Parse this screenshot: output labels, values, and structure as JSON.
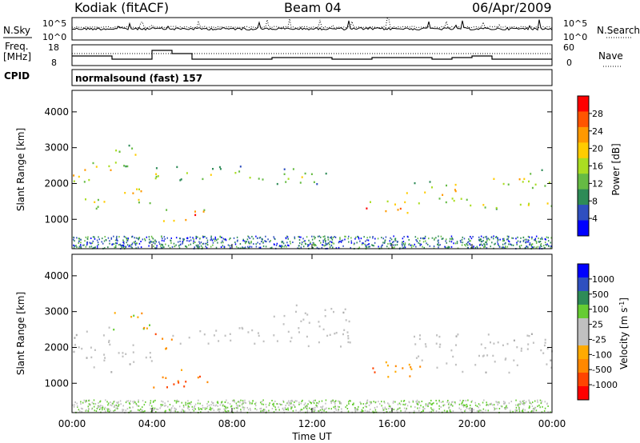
{
  "header": {
    "station": "Kodiak (fitACF)",
    "beam": "Beam 04",
    "date": "06/Apr/2009"
  },
  "noise_panel": {
    "left_label": "N.Sky",
    "right_label": "N.Search",
    "yticks": [
      "10^5",
      "10^0"
    ],
    "yticks_right": [
      "10^5",
      "10^0"
    ]
  },
  "freq_panel": {
    "left_label_line1": "Freq.",
    "left_label_line2": "[MHz]",
    "right_label": "Nave",
    "yticks": [
      "18",
      "8"
    ],
    "yticks_right": [
      "60",
      "0"
    ]
  },
  "cpid": {
    "label": "CPID",
    "value": "normalsound (fast) 157"
  },
  "axes": {
    "xlabel": "Time UT",
    "xticks": [
      "00:00",
      "04:00",
      "08:00",
      "12:00",
      "16:00",
      "20:00",
      "00:00"
    ],
    "ylabel": "Slant Range [km]",
    "yticks": [
      "4000",
      "3000",
      "2000",
      "1000"
    ]
  },
  "chart_data": [
    {
      "type": "heatmap",
      "name": "Power",
      "colorbar_label": "Power [dB]",
      "colorbar_ticks": [
        "28",
        "24",
        "20",
        "16",
        "12",
        "8",
        "4"
      ],
      "colorbar_colors": [
        "#0000ff",
        "#2f4fbf",
        "#2e8b57",
        "#66bb44",
        "#aadd22",
        "#ffcc00",
        "#ff9900",
        "#ff5500",
        "#ff0000"
      ],
      "xlim_hours": [
        0,
        24
      ],
      "ylim_km": [
        180,
        4600
      ],
      "features": [
        {
          "t0": 0.0,
          "t1": 2.0,
          "r0": 2000,
          "r1": 2600,
          "level": 0.75
        },
        {
          "t0": 0.0,
          "t1": 2.0,
          "r0": 1300,
          "r1": 1650,
          "level": 0.6
        },
        {
          "t0": 2.0,
          "t1": 4.0,
          "r0": 1450,
          "r1": 1900,
          "level": 0.85
        },
        {
          "t0": 2.0,
          "t1": 4.0,
          "r0": 2500,
          "r1": 3100,
          "level": 0.6
        },
        {
          "t0": 4.5,
          "t1": 7.0,
          "r0": 900,
          "r1": 1300,
          "level": 0.95
        },
        {
          "t0": 4.0,
          "t1": 10.0,
          "r0": 2100,
          "r1": 2500,
          "level": 0.5
        },
        {
          "t0": 10.0,
          "t1": 13.0,
          "r0": 1950,
          "r1": 2450,
          "level": 0.45
        },
        {
          "t0": 14.5,
          "t1": 17.5,
          "r0": 1150,
          "r1": 1550,
          "level": 0.9
        },
        {
          "t0": 16.5,
          "t1": 19.5,
          "r0": 1500,
          "r1": 2100,
          "level": 0.7
        },
        {
          "t0": 19.5,
          "t1": 24.0,
          "r0": 1300,
          "r1": 1600,
          "level": 0.55
        },
        {
          "t0": 21.0,
          "t1": 24.0,
          "r0": 1900,
          "r1": 2400,
          "level": 0.6
        }
      ]
    },
    {
      "type": "heatmap",
      "name": "Velocity",
      "colorbar_label": "Velocity [m s^-1]",
      "colorbar_ticks": [
        "1000",
        "500",
        "100",
        "25",
        "-25",
        "-100",
        "-500",
        "-1000"
      ],
      "colorbar_colors": [
        "#ff0000",
        "#ff4400",
        "#ff8800",
        "#ffaa00",
        "#c0c0c0",
        "#c0c0c0",
        "#66cc33",
        "#2e8b57",
        "#2f4fbf",
        "#0000ff"
      ],
      "xlim_hours": [
        0,
        24
      ],
      "ylim_km": [
        180,
        4600
      ],
      "features": [
        {
          "t0": 0.0,
          "t1": 2.0,
          "r0": 1300,
          "r1": 2600,
          "kind": "ground"
        },
        {
          "t0": 2.0,
          "t1": 4.0,
          "r0": 2400,
          "r1": 3000,
          "kind": "toward"
        },
        {
          "t0": 2.0,
          "t1": 4.0,
          "r0": 1500,
          "r1": 2200,
          "kind": "ground"
        },
        {
          "t0": 4.0,
          "t1": 7.0,
          "r0": 900,
          "r1": 1400,
          "kind": "away"
        },
        {
          "t0": 4.0,
          "t1": 5.0,
          "r0": 1900,
          "r1": 2500,
          "kind": "away"
        },
        {
          "t0": 5.0,
          "t1": 10.0,
          "r0": 2100,
          "r1": 2600,
          "kind": "ground"
        },
        {
          "t0": 10.0,
          "t1": 14.0,
          "r0": 1900,
          "r1": 3200,
          "kind": "ground"
        },
        {
          "t0": 14.5,
          "t1": 17.5,
          "r0": 1200,
          "r1": 1700,
          "kind": "away"
        },
        {
          "t0": 17.0,
          "t1": 24.0,
          "r0": 1300,
          "r1": 2400,
          "kind": "ground"
        }
      ]
    }
  ]
}
